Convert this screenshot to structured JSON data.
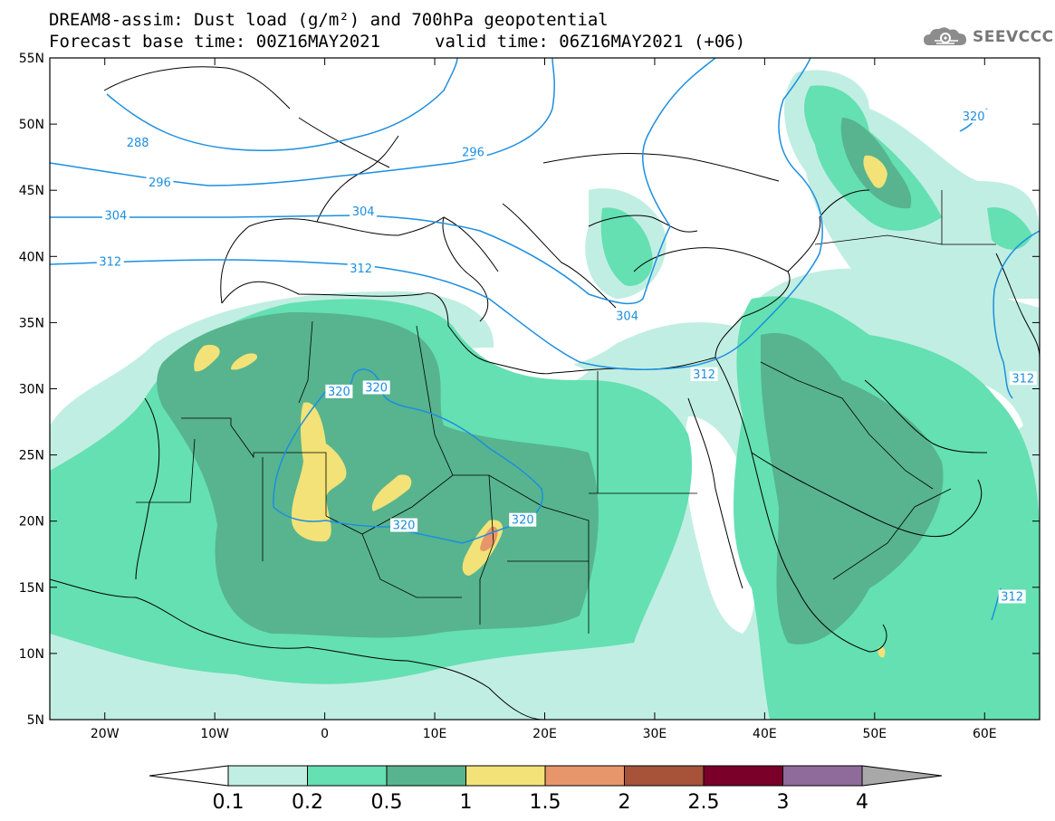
{
  "header": {
    "title_line1": "DREAM8-assim: Dust load (g/m²) and 700hPa geopotential",
    "title_line2_left": "Forecast base time: 00Z16MAY2021",
    "title_line2_right": "valid time: 06Z16MAY2021 (+06)"
  },
  "logo": {
    "text": "SEEVCCC",
    "icon": "cloud-gear-icon"
  },
  "map": {
    "lon_labels": [
      "20W",
      "10W",
      "0",
      "10E",
      "20E",
      "30E",
      "40E",
      "50E",
      "60E"
    ],
    "lon_values": [
      -20,
      -10,
      0,
      10,
      20,
      30,
      40,
      50,
      60
    ],
    "lat_labels": [
      "55N",
      "50N",
      "45N",
      "40N",
      "35N",
      "30N",
      "25N",
      "20N",
      "15N",
      "10N",
      "5N"
    ],
    "lat_values": [
      55,
      50,
      45,
      40,
      35,
      30,
      25,
      20,
      15,
      10,
      5
    ],
    "extent": {
      "lon_min": -25,
      "lon_max": 65,
      "lat_min": 5,
      "lat_max": 55
    },
    "contour_labels": [
      {
        "text": "288",
        "lon": -17,
        "lat": 48.5
      },
      {
        "text": "296",
        "lon": -15,
        "lat": 45.5
      },
      {
        "text": "296",
        "lon": 13.5,
        "lat": 47.8
      },
      {
        "text": "304",
        "lon": -19,
        "lat": 43.0
      },
      {
        "text": "304",
        "lon": 3.5,
        "lat": 43.3
      },
      {
        "text": "304",
        "lon": 27.5,
        "lat": 35.4
      },
      {
        "text": "312",
        "lon": -19.5,
        "lat": 39.5
      },
      {
        "text": "312",
        "lon": 3.3,
        "lat": 39.0
      },
      {
        "text": "312",
        "lon": 34.5,
        "lat": 31.0
      },
      {
        "text": "312",
        "lon": 63.5,
        "lat": 30.7
      },
      {
        "text": "312",
        "lon": 62.5,
        "lat": 14.2
      },
      {
        "text": "320",
        "lon": 59.0,
        "lat": 50.5
      },
      {
        "text": "320",
        "lon": 1.3,
        "lat": 29.7
      },
      {
        "text": "320",
        "lon": 4.7,
        "lat": 30.0
      },
      {
        "text": "320",
        "lon": 7.2,
        "lat": 19.6
      },
      {
        "text": "320",
        "lon": 18.0,
        "lat": 20.0
      }
    ]
  },
  "colorbar": {
    "labels": [
      "0.1",
      "0.2",
      "0.5",
      "1",
      "1.5",
      "2",
      "2.5",
      "3",
      "4"
    ],
    "colors": [
      "#c1eee2",
      "#64e0b2",
      "#57b48e",
      "#f2e277",
      "#e7956a",
      "#a6533a",
      "#7a0029",
      "#8e6b9b"
    ],
    "under_color": "#ffffff",
    "over_color": "#a8a8a8"
  },
  "colors": {
    "dust_0_1": "#c1eee2",
    "dust_0_2": "#64e0b2",
    "dust_0_5": "#57b48e",
    "dust_1": "#f2e277",
    "dust_1_5": "#e7956a",
    "contour": "#1c8fe0",
    "coast": "#000000"
  }
}
